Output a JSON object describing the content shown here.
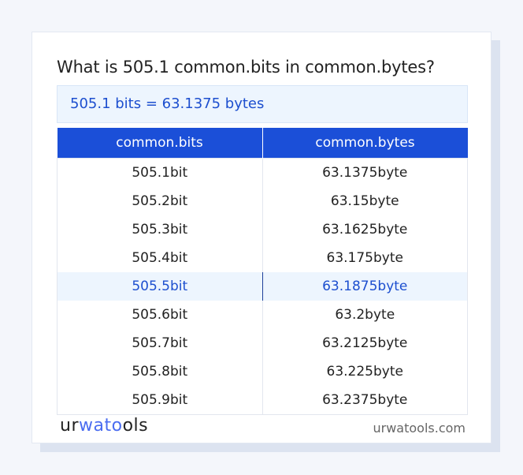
{
  "title": "What is 505.1 common.bits in common.bytes?",
  "result": "505.1 bits = 63.1375 bytes",
  "table": {
    "headers": [
      "common.bits",
      "common.bytes"
    ],
    "rows": [
      [
        "505.1bit",
        "63.1375byte"
      ],
      [
        "505.2bit",
        "63.15byte"
      ],
      [
        "505.3bit",
        "63.1625byte"
      ],
      [
        "505.4bit",
        "63.175byte"
      ],
      [
        "505.5bit",
        "63.1875byte"
      ],
      [
        "505.6bit",
        "63.2byte"
      ],
      [
        "505.7bit",
        "63.2125byte"
      ],
      [
        "505.8bit",
        "63.225byte"
      ],
      [
        "505.9bit",
        "63.2375byte"
      ]
    ],
    "highlighted_row": 4
  },
  "footer": {
    "logo_a": "ur",
    "logo_b": "wato",
    "logo_c": "ols",
    "site": "urwatools.com"
  },
  "colors": {
    "accent": "#1b4fd8",
    "highlight_bg": "#edf5fe"
  }
}
